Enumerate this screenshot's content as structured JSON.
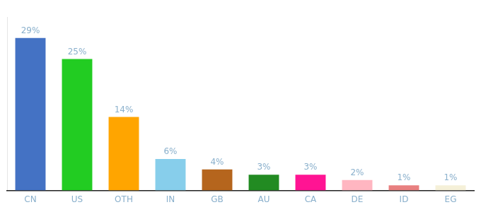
{
  "chart_data": {
    "type": "bar",
    "categories": [
      "CN",
      "US",
      "OTH",
      "IN",
      "GB",
      "AU",
      "CA",
      "DE",
      "ID",
      "EG"
    ],
    "values": [
      29,
      25,
      14,
      6,
      4,
      3,
      3,
      2,
      1,
      1
    ],
    "value_labels": [
      "29%",
      "25%",
      "14%",
      "6%",
      "4%",
      "3%",
      "3%",
      "2%",
      "1%",
      "1%"
    ],
    "colors": [
      "#4472c4",
      "#22cc22",
      "#ffa500",
      "#87ceeb",
      "#b5651d",
      "#228b22",
      "#ff1493",
      "#ffb6c1",
      "#e88080",
      "#f5f0d8"
    ],
    "ylim": [
      0,
      33
    ],
    "grid": false,
    "data_labels": true,
    "tick_labels": "x"
  }
}
